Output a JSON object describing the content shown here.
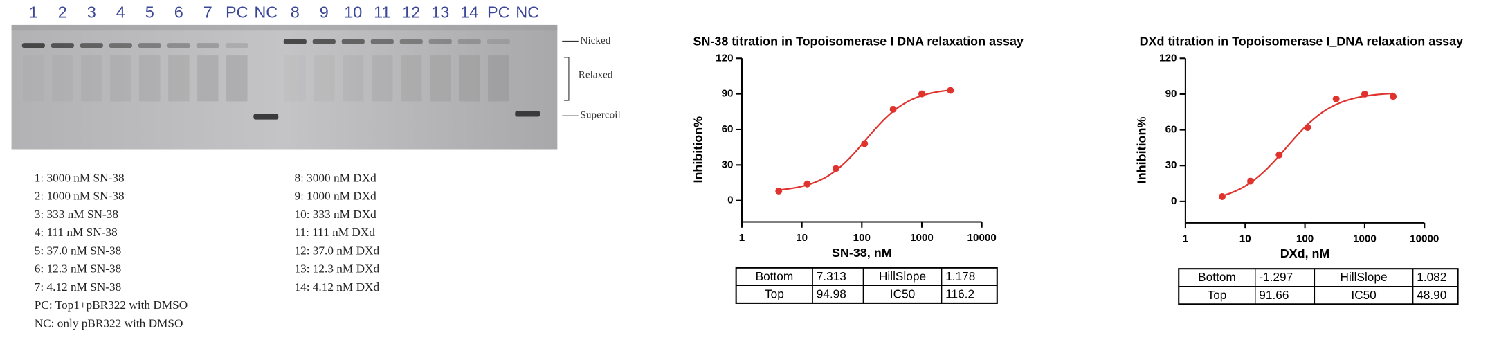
{
  "gel": {
    "lanes": [
      "1",
      "2",
      "3",
      "4",
      "5",
      "6",
      "7",
      "PC",
      "NC",
      "8",
      "9",
      "10",
      "11",
      "12",
      "13",
      "14",
      "PC",
      "NC"
    ],
    "bands": [
      "Nicked",
      "Relaxed",
      "Supercoil"
    ],
    "legend_left": [
      "1: 3000 nM SN-38",
      "2: 1000 nM SN-38",
      "3: 333 nM SN-38",
      "4: 111 nM SN-38",
      "5: 37.0 nM SN-38",
      "6: 12.3 nM SN-38",
      "7: 4.12 nM SN-38",
      "PC: Top1+pBR322 with DMSO",
      "NC: only pBR322 with DMSO"
    ],
    "legend_right": [
      "8: 3000 nM DXd",
      "9: 1000 nM DXd",
      "10: 333 nM DXd",
      "11: 111 nM DXd",
      "12: 37.0 nM DXd",
      "13: 12.3 nM DXd",
      "14: 4.12 nM DXd"
    ]
  },
  "chart_data": [
    {
      "type": "line",
      "title": "SN-38 titration in Topoisomerase I DNA relaxation assay",
      "x_label": "SN-38, nM",
      "y_label": "Inhibition%",
      "x": [
        4.12,
        12.3,
        37,
        111,
        333,
        1000,
        3000
      ],
      "values": [
        8,
        14,
        27,
        48,
        77,
        90,
        93
      ],
      "color": "#e0332e",
      "xlim": [
        1,
        10000
      ],
      "xticks": [
        1,
        10,
        100,
        1000,
        10000
      ],
      "x_log": true,
      "ylim": [
        -18,
        120
      ],
      "yticks": [
        0,
        30,
        60,
        90,
        120
      ],
      "fit_table": {
        "rows": [
          [
            "Bottom",
            7.313,
            "HillSlope",
            1.178
          ],
          [
            "Top",
            94.98,
            "IC50",
            116.2
          ]
        ]
      }
    },
    {
      "type": "line",
      "title": "DXd titration in Topoisomerase I_DNA relaxation assay",
      "x_label": "DXd, nM",
      "y_label": "Inhibition%",
      "x": [
        4.12,
        12.3,
        37,
        111,
        333,
        1000,
        3000
      ],
      "values": [
        4,
        17,
        39,
        62,
        86,
        90,
        88
      ],
      "color": "#e0332e",
      "xlim": [
        1,
        10000
      ],
      "xticks": [
        1,
        10,
        100,
        1000,
        10000
      ],
      "x_log": true,
      "ylim": [
        -18,
        120
      ],
      "yticks": [
        0,
        30,
        60,
        90,
        120
      ],
      "fit_table": {
        "rows": [
          [
            "Bottom",
            -1.297,
            "HillSlope",
            1.082
          ],
          [
            "Top",
            91.66,
            "IC50",
            {
              "value": 48.9,
              "label": "48.90"
            }
          ]
        ]
      }
    }
  ]
}
